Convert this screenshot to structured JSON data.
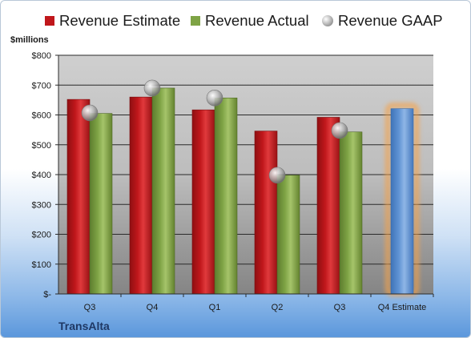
{
  "company": "TransAlta",
  "unit_label": "$millions",
  "legend": [
    {
      "label": "Revenue Estimate",
      "color": "#c0171b",
      "marker": "square"
    },
    {
      "label": "Revenue Actual",
      "color": "#7ea345",
      "marker": "square"
    },
    {
      "label": "Revenue GAAP",
      "color": "#9a9a9a",
      "marker": "sphere"
    }
  ],
  "colors": {
    "estimate": "#c0171b",
    "actual": "#7ea345",
    "gaap": "#9a9a9a",
    "forecast": "#5f93d4",
    "forecast_glow": "#f5a24a"
  },
  "chart_data": {
    "type": "bar",
    "categories": [
      "Q3",
      "Q4",
      "Q1",
      "Q2",
      "Q3",
      "Q4 Estimate"
    ],
    "series": [
      {
        "name": "Revenue Estimate",
        "values": [
          652,
          660,
          617,
          546,
          592,
          621
        ]
      },
      {
        "name": "Revenue Actual",
        "values": [
          605,
          690,
          657,
          398,
          543,
          null
        ]
      },
      {
        "name": "Revenue GAAP",
        "values": [
          607,
          690,
          657,
          398,
          548,
          null
        ]
      }
    ],
    "ylabel": "$millions",
    "ylim": [
      0,
      800
    ],
    "yticks": [
      0,
      100,
      200,
      300,
      400,
      500,
      600,
      700,
      800
    ],
    "ytick_labels": [
      "$-",
      "$100",
      "$200",
      "$300",
      "$400",
      "$500",
      "$600",
      "$700",
      "$800"
    ],
    "grid": true,
    "legend_position": "top"
  }
}
